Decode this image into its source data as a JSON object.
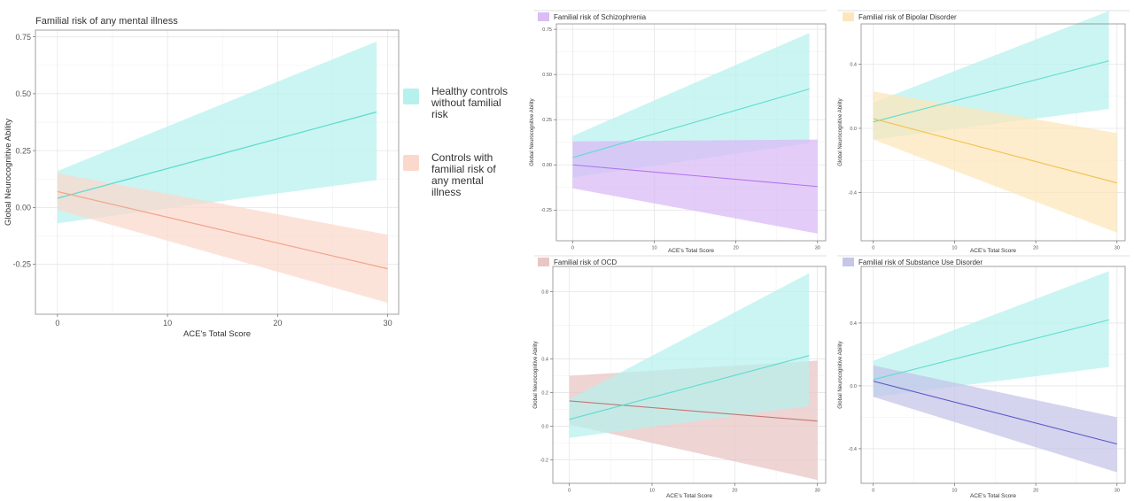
{
  "colors": {
    "healthy": "#5fdcd2",
    "healthy_band": "#b7f1ed",
    "any": "#f2a68d",
    "any_band": "#fbd8cc",
    "scz": "#b173ef",
    "scz_band": "#d9b8f7",
    "bip": "#f4c04f",
    "bip_band": "#fce6b8",
    "ocd": "#c47774",
    "ocd_band": "#e8c3c2",
    "sud": "#5b58c8",
    "sud_band": "#c3c3e7"
  },
  "legend": {
    "healthy": "Healthy controls without familial risk",
    "any": "Controls with familial risk of any mental illness"
  },
  "chart_data": [
    {
      "id": "main",
      "type": "line",
      "title": "Familial risk of any mental illness",
      "xlabel": "ACE's Total Score",
      "ylabel": "Global Neurocognitive Ability",
      "xlim": [
        -2,
        31
      ],
      "ylim": [
        -0.47,
        0.78
      ],
      "xticks": [
        0,
        10,
        20,
        30
      ],
      "xtick_labels": [
        "0",
        "10",
        "20",
        "30"
      ],
      "yticks": [
        -0.25,
        0,
        0.25,
        0.5,
        0.75
      ],
      "ytick_labels": [
        "-0.25",
        "0.00",
        "0.25",
        "0.50",
        "0.75"
      ],
      "grid": true,
      "series": [
        {
          "key": "healthy",
          "x": [
            0,
            29
          ],
          "y": [
            0.04,
            0.42
          ],
          "lower": [
            -0.07,
            0.12
          ],
          "upper": [
            0.16,
            0.73
          ]
        },
        {
          "key": "any",
          "x": [
            0,
            30
          ],
          "y": [
            0.07,
            -0.27
          ],
          "lower": [
            -0.01,
            -0.42
          ],
          "upper": [
            0.15,
            -0.12
          ]
        }
      ]
    },
    {
      "id": "scz",
      "type": "line",
      "title": "Familial risk of Schizophrenia",
      "xlabel": "ACE's Total Score",
      "ylabel": "Global Neurocognitive Ability",
      "xlim": [
        -2,
        31
      ],
      "ylim": [
        -0.42,
        0.78
      ],
      "xticks": [
        0,
        10,
        20,
        30
      ],
      "xtick_labels": [
        "0",
        "10",
        "20",
        "30"
      ],
      "yticks": [
        -0.25,
        0,
        0.25,
        0.5,
        0.75
      ],
      "ytick_labels": [
        "-0.25",
        "0.00",
        "0.25",
        "0.50",
        "0.75"
      ],
      "grid": true,
      "series": [
        {
          "key": "healthy",
          "x": [
            0,
            29
          ],
          "y": [
            0.04,
            0.42
          ],
          "lower": [
            -0.07,
            0.12
          ],
          "upper": [
            0.16,
            0.73
          ]
        },
        {
          "key": "scz",
          "x": [
            0,
            30
          ],
          "y": [
            0.0,
            -0.12
          ],
          "lower": [
            -0.13,
            -0.38
          ],
          "upper": [
            0.13,
            0.14
          ]
        }
      ]
    },
    {
      "id": "bip",
      "type": "line",
      "title": "Familial risk of Bipolar Disorder",
      "xlabel": "ACE's Total Score",
      "ylabel": "Global Neurocognitive Ability",
      "xlim": [
        -1.5,
        31
      ],
      "ylim": [
        -0.7,
        0.65
      ],
      "xticks": [
        0,
        10,
        20,
        30
      ],
      "xtick_labels": [
        "0",
        "10",
        "20",
        "30"
      ],
      "yticks": [
        -0.4,
        0,
        0.4
      ],
      "ytick_labels": [
        "-0.4",
        "0.0",
        "0.4"
      ],
      "grid": true,
      "series": [
        {
          "key": "healthy",
          "x": [
            0,
            29
          ],
          "y": [
            0.04,
            0.42
          ],
          "lower": [
            -0.07,
            0.12
          ],
          "upper": [
            0.16,
            0.73
          ]
        },
        {
          "key": "bip",
          "x": [
            0,
            30
          ],
          "y": [
            0.06,
            -0.34
          ],
          "lower": [
            -0.07,
            -0.65
          ],
          "upper": [
            0.23,
            -0.03
          ]
        }
      ]
    },
    {
      "id": "ocd",
      "type": "line",
      "title": "Familial risk of OCD",
      "xlabel": "ACE's Total Score",
      "ylabel": "Global Neurocognitive Ability",
      "xlim": [
        -2,
        31
      ],
      "ylim": [
        -0.34,
        0.95
      ],
      "xticks": [
        0,
        10,
        20,
        30
      ],
      "xtick_labels": [
        "0",
        "10",
        "20",
        "30"
      ],
      "yticks": [
        -0.2,
        0,
        0.2,
        0.4,
        0.8
      ],
      "ytick_labels": [
        "-0.2",
        "0.0",
        "0.2",
        "0.4",
        "0.8"
      ],
      "grid": true,
      "series": [
        {
          "key": "ocd",
          "x": [
            0,
            30
          ],
          "y": [
            0.15,
            0.03
          ],
          "lower": [
            0.01,
            -0.32
          ],
          "upper": [
            0.3,
            0.39
          ]
        },
        {
          "key": "healthy",
          "x": [
            0,
            29
          ],
          "y": [
            0.04,
            0.42
          ],
          "lower": [
            -0.07,
            0.12
          ],
          "upper": [
            0.16,
            0.91
          ]
        }
      ]
    },
    {
      "id": "sud",
      "type": "line",
      "title": "Familial risk of Substance Use Disorder",
      "xlabel": "ACE's Total Score",
      "ylabel": "Global Neurocognitive Ability",
      "xlim": [
        -1.5,
        31
      ],
      "ylim": [
        -0.62,
        0.76
      ],
      "xticks": [
        0,
        10,
        20,
        30
      ],
      "xtick_labels": [
        "0",
        "10",
        "20",
        "30"
      ],
      "yticks": [
        -0.4,
        0,
        0.4
      ],
      "ytick_labels": [
        "-0.4",
        "0.0",
        "0.4"
      ],
      "grid": true,
      "series": [
        {
          "key": "healthy",
          "x": [
            0,
            29
          ],
          "y": [
            0.04,
            0.42
          ],
          "lower": [
            -0.07,
            0.12
          ],
          "upper": [
            0.16,
            0.73
          ]
        },
        {
          "key": "sud",
          "x": [
            0,
            30
          ],
          "y": [
            0.03,
            -0.37
          ],
          "lower": [
            -0.07,
            -0.55
          ],
          "upper": [
            0.13,
            -0.2
          ]
        }
      ]
    }
  ]
}
